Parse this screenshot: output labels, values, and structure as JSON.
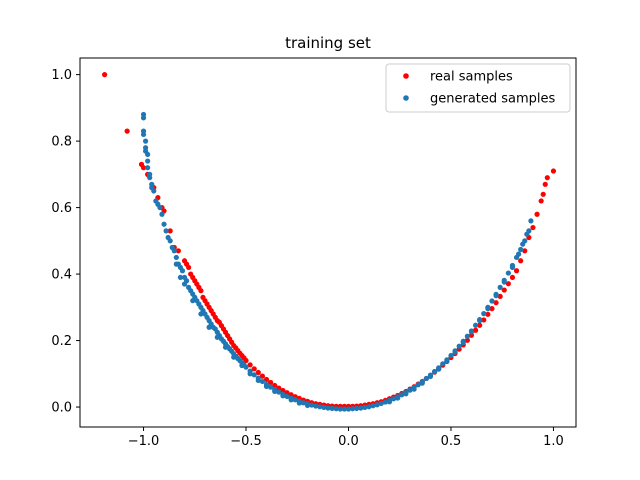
{
  "chart_data": {
    "type": "scatter",
    "title": "training set",
    "xlabel": "",
    "ylabel": "",
    "xlim": [
      -1.31,
      1.11
    ],
    "ylim": [
      -0.06,
      1.05
    ],
    "xticks": [
      -1.0,
      -0.5,
      0.0,
      0.5,
      1.0
    ],
    "yticks": [
      0.0,
      0.2,
      0.4,
      0.6,
      0.8,
      1.0
    ],
    "xtick_labels": [
      "−1.0",
      "−0.5",
      "0.0",
      "0.5",
      "1.0"
    ],
    "ytick_labels": [
      "0.0",
      "0.2",
      "0.4",
      "0.6",
      "0.8",
      "1.0"
    ],
    "grid": false,
    "legend": "top-right",
    "series": [
      {
        "name": "real samples",
        "color": "#ff0000",
        "points": [
          [
            -1.19,
            1.0
          ],
          [
            -1.08,
            0.83
          ],
          [
            -1.01,
            0.73
          ],
          [
            -1.0,
            0.72
          ],
          [
            -0.98,
            0.7
          ],
          [
            -0.95,
            0.66
          ],
          [
            -0.93,
            0.63
          ],
          [
            -0.91,
            0.6
          ],
          [
            -0.9,
            0.59
          ],
          [
            -0.87,
            0.53
          ],
          [
            -0.85,
            0.48
          ],
          [
            -0.83,
            0.47
          ],
          [
            -0.8,
            0.44
          ],
          [
            -0.79,
            0.43
          ],
          [
            -0.78,
            0.42
          ],
          [
            -0.77,
            0.4
          ],
          [
            -0.76,
            0.39
          ],
          [
            -0.75,
            0.38
          ],
          [
            -0.74,
            0.37
          ],
          [
            -0.73,
            0.36
          ],
          [
            -0.72,
            0.35
          ],
          [
            -0.71,
            0.33
          ],
          [
            -0.7,
            0.32
          ],
          [
            -0.69,
            0.31
          ],
          [
            -0.68,
            0.3
          ],
          [
            -0.67,
            0.29
          ],
          [
            -0.66,
            0.28
          ],
          [
            -0.65,
            0.27
          ],
          [
            -0.64,
            0.26
          ],
          [
            -0.63,
            0.255
          ],
          [
            -0.62,
            0.245
          ],
          [
            -0.61,
            0.235
          ],
          [
            -0.6,
            0.225
          ],
          [
            -0.59,
            0.215
          ],
          [
            -0.58,
            0.205
          ],
          [
            -0.57,
            0.195
          ],
          [
            -0.56,
            0.185
          ],
          [
            -0.55,
            0.178
          ],
          [
            -0.54,
            0.17
          ],
          [
            -0.53,
            0.162
          ],
          [
            -0.52,
            0.155
          ],
          [
            -0.51,
            0.148
          ],
          [
            -0.5,
            0.14
          ],
          [
            -0.48,
            0.127
          ],
          [
            -0.46,
            0.115
          ],
          [
            -0.44,
            0.104
          ],
          [
            -0.42,
            0.093
          ],
          [
            -0.4,
            0.083
          ],
          [
            -0.38,
            0.074
          ],
          [
            -0.36,
            0.065
          ],
          [
            -0.34,
            0.057
          ],
          [
            -0.32,
            0.05
          ],
          [
            -0.3,
            0.043
          ],
          [
            -0.28,
            0.037
          ],
          [
            -0.26,
            0.031
          ],
          [
            -0.24,
            0.026
          ],
          [
            -0.22,
            0.021
          ],
          [
            -0.2,
            0.017
          ],
          [
            -0.18,
            0.013
          ],
          [
            -0.16,
            0.01
          ],
          [
            -0.14,
            0.008
          ],
          [
            -0.12,
            0.006
          ],
          [
            -0.1,
            0.004
          ],
          [
            -0.08,
            0.003
          ],
          [
            -0.06,
            0.002
          ],
          [
            -0.04,
            0.002
          ],
          [
            -0.02,
            0.002
          ],
          [
            0.0,
            0.002
          ],
          [
            0.02,
            0.002
          ],
          [
            0.04,
            0.003
          ],
          [
            0.06,
            0.004
          ],
          [
            0.08,
            0.006
          ],
          [
            0.1,
            0.008
          ],
          [
            0.12,
            0.01
          ],
          [
            0.14,
            0.013
          ],
          [
            0.16,
            0.016
          ],
          [
            0.18,
            0.02
          ],
          [
            0.2,
            0.025
          ],
          [
            0.22,
            0.03
          ],
          [
            0.24,
            0.035
          ],
          [
            0.26,
            0.041
          ],
          [
            0.28,
            0.047
          ],
          [
            0.3,
            0.054
          ],
          [
            0.32,
            0.061
          ],
          [
            0.34,
            0.069
          ],
          [
            0.36,
            0.077
          ],
          [
            0.38,
            0.086
          ],
          [
            0.4,
            0.095
          ],
          [
            0.42,
            0.105
          ],
          [
            0.44,
            0.115
          ],
          [
            0.46,
            0.126
          ],
          [
            0.48,
            0.137
          ],
          [
            0.5,
            0.149
          ],
          [
            0.52,
            0.161
          ],
          [
            0.54,
            0.174
          ],
          [
            0.56,
            0.187
          ],
          [
            0.58,
            0.201
          ],
          [
            0.6,
            0.216
          ],
          [
            0.62,
            0.231
          ],
          [
            0.64,
            0.246
          ],
          [
            0.66,
            0.262
          ],
          [
            0.68,
            0.279
          ],
          [
            0.7,
            0.296
          ],
          [
            0.72,
            0.314
          ],
          [
            0.74,
            0.333
          ],
          [
            0.76,
            0.352
          ],
          [
            0.78,
            0.371
          ],
          [
            0.8,
            0.39
          ],
          [
            0.82,
            0.41
          ],
          [
            0.84,
            0.44
          ],
          [
            0.86,
            0.47
          ],
          [
            0.88,
            0.51
          ],
          [
            0.9,
            0.54
          ],
          [
            0.92,
            0.58
          ],
          [
            0.94,
            0.62
          ],
          [
            0.95,
            0.64
          ],
          [
            0.96,
            0.67
          ],
          [
            0.97,
            0.69
          ],
          [
            1.0,
            0.71
          ]
        ]
      },
      {
        "name": "generated samples",
        "color": "#1f77b4",
        "points": [
          [
            -1.0,
            0.88
          ],
          [
            -1.0,
            0.87
          ],
          [
            -1.0,
            0.83
          ],
          [
            -1.0,
            0.82
          ],
          [
            -0.99,
            0.8
          ],
          [
            -0.99,
            0.78
          ],
          [
            -0.99,
            0.77
          ],
          [
            -0.98,
            0.76
          ],
          [
            -0.98,
            0.74
          ],
          [
            -0.98,
            0.72
          ],
          [
            -0.97,
            0.7
          ],
          [
            -0.97,
            0.69
          ],
          [
            -0.96,
            0.67
          ],
          [
            -0.96,
            0.66
          ],
          [
            -0.95,
            0.65
          ],
          [
            -0.94,
            0.62
          ],
          [
            -0.93,
            0.61
          ],
          [
            -0.92,
            0.6
          ],
          [
            -0.91,
            0.58
          ],
          [
            -0.9,
            0.55
          ],
          [
            -0.89,
            0.53
          ],
          [
            -0.88,
            0.51
          ],
          [
            -0.87,
            0.5
          ],
          [
            -0.86,
            0.48
          ],
          [
            -0.85,
            0.47
          ],
          [
            -0.84,
            0.45
          ],
          [
            -0.83,
            0.43
          ],
          [
            -0.82,
            0.42
          ],
          [
            -0.81,
            0.41
          ],
          [
            -0.8,
            0.39
          ],
          [
            -0.79,
            0.38
          ],
          [
            -0.78,
            0.36
          ],
          [
            -0.77,
            0.35
          ],
          [
            -0.76,
            0.34
          ],
          [
            -0.75,
            0.33
          ],
          [
            -0.74,
            0.32
          ],
          [
            -0.73,
            0.31
          ],
          [
            -0.72,
            0.3
          ],
          [
            -0.71,
            0.29
          ],
          [
            -0.7,
            0.28
          ],
          [
            -0.69,
            0.27
          ],
          [
            -0.68,
            0.26
          ],
          [
            -0.67,
            0.25
          ],
          [
            -0.66,
            0.24
          ],
          [
            -0.65,
            0.235
          ],
          [
            -0.64,
            0.225
          ],
          [
            -0.63,
            0.215
          ],
          [
            -0.62,
            0.205
          ],
          [
            -0.61,
            0.198
          ],
          [
            -0.6,
            0.19
          ],
          [
            -0.59,
            0.182
          ],
          [
            -0.58,
            0.175
          ],
          [
            -0.57,
            0.168
          ],
          [
            -0.56,
            0.16
          ],
          [
            -0.55,
            0.153
          ],
          [
            -0.54,
            0.146
          ],
          [
            -0.53,
            0.14
          ],
          [
            -0.52,
            0.133
          ],
          [
            -0.51,
            0.127
          ],
          [
            -0.5,
            0.12
          ],
          [
            -0.48,
            0.108
          ],
          [
            -0.46,
            0.097
          ],
          [
            -0.44,
            0.087
          ],
          [
            -0.42,
            0.077
          ],
          [
            -0.4,
            0.068
          ],
          [
            -0.38,
            0.06
          ],
          [
            -0.36,
            0.052
          ],
          [
            -0.34,
            0.045
          ],
          [
            -0.32,
            0.038
          ],
          [
            -0.3,
            0.032
          ],
          [
            -0.28,
            0.027
          ],
          [
            -0.26,
            0.022
          ],
          [
            -0.24,
            0.017
          ],
          [
            -0.22,
            0.013
          ],
          [
            -0.2,
            0.01
          ],
          [
            -0.18,
            0.006
          ],
          [
            -0.16,
            0.003
          ],
          [
            -0.14,
            0.001
          ],
          [
            -0.12,
            -0.001
          ],
          [
            -0.1,
            -0.003
          ],
          [
            -0.08,
            -0.004
          ],
          [
            -0.06,
            -0.005
          ],
          [
            -0.04,
            -0.006
          ],
          [
            -0.02,
            -0.006
          ],
          [
            0.0,
            -0.006
          ],
          [
            0.02,
            -0.005
          ],
          [
            0.04,
            -0.004
          ],
          [
            0.06,
            -0.003
          ],
          [
            0.08,
            -0.001
          ],
          [
            0.1,
            0.001
          ],
          [
            0.12,
            0.004
          ],
          [
            0.14,
            0.007
          ],
          [
            0.16,
            0.011
          ],
          [
            0.18,
            0.015
          ],
          [
            0.2,
            0.02
          ],
          [
            0.22,
            0.025
          ],
          [
            0.24,
            0.031
          ],
          [
            0.26,
            0.037
          ],
          [
            0.28,
            0.044
          ],
          [
            0.3,
            0.051
          ],
          [
            0.32,
            0.059
          ],
          [
            0.34,
            0.067
          ],
          [
            0.36,
            0.076
          ],
          [
            0.38,
            0.086
          ],
          [
            0.4,
            0.096
          ],
          [
            0.42,
            0.107
          ],
          [
            0.44,
            0.118
          ],
          [
            0.46,
            0.13
          ],
          [
            0.48,
            0.142
          ],
          [
            0.5,
            0.155
          ],
          [
            0.52,
            0.169
          ],
          [
            0.54,
            0.183
          ],
          [
            0.56,
            0.198
          ],
          [
            0.58,
            0.213
          ],
          [
            0.6,
            0.229
          ],
          [
            0.62,
            0.246
          ],
          [
            0.64,
            0.263
          ],
          [
            0.66,
            0.281
          ],
          [
            0.68,
            0.3
          ],
          [
            0.7,
            0.319
          ],
          [
            0.72,
            0.339
          ],
          [
            0.74,
            0.36
          ],
          [
            0.76,
            0.381
          ],
          [
            0.78,
            0.403
          ],
          [
            0.8,
            0.426
          ],
          [
            0.82,
            0.45
          ],
          [
            0.83,
            0.46
          ],
          [
            0.84,
            0.474
          ],
          [
            0.85,
            0.49
          ],
          [
            0.86,
            0.5
          ],
          [
            0.87,
            0.52
          ],
          [
            0.88,
            0.53
          ],
          [
            0.89,
            0.56
          ],
          [
            -0.84,
            0.43
          ],
          [
            -0.82,
            0.39
          ],
          [
            -0.8,
            0.37
          ],
          [
            -0.76,
            0.32
          ],
          [
            -0.72,
            0.28
          ],
          [
            -0.68,
            0.24
          ],
          [
            -0.64,
            0.21
          ],
          [
            -0.6,
            0.18
          ],
          [
            -0.56,
            0.15
          ],
          [
            -0.52,
            0.125
          ],
          [
            -0.48,
            0.1
          ],
          [
            -0.44,
            0.08
          ],
          [
            -0.4,
            0.062
          ],
          [
            -0.36,
            0.047
          ],
          [
            -0.32,
            0.034
          ],
          [
            -0.28,
            0.022
          ],
          [
            -0.24,
            0.012
          ],
          [
            -0.2,
            0.005
          ],
          [
            0.2,
            0.016
          ],
          [
            0.24,
            0.027
          ],
          [
            0.28,
            0.04
          ],
          [
            0.32,
            0.054
          ],
          [
            0.36,
            0.072
          ],
          [
            0.4,
            0.092
          ],
          [
            0.44,
            0.114
          ],
          [
            0.48,
            0.138
          ],
          [
            0.52,
            0.165
          ],
          [
            0.56,
            0.194
          ],
          [
            0.6,
            0.226
          ],
          [
            0.64,
            0.26
          ],
          [
            0.68,
            0.296
          ],
          [
            0.72,
            0.335
          ],
          [
            0.76,
            0.376
          ],
          [
            0.8,
            0.42
          ]
        ]
      }
    ]
  }
}
